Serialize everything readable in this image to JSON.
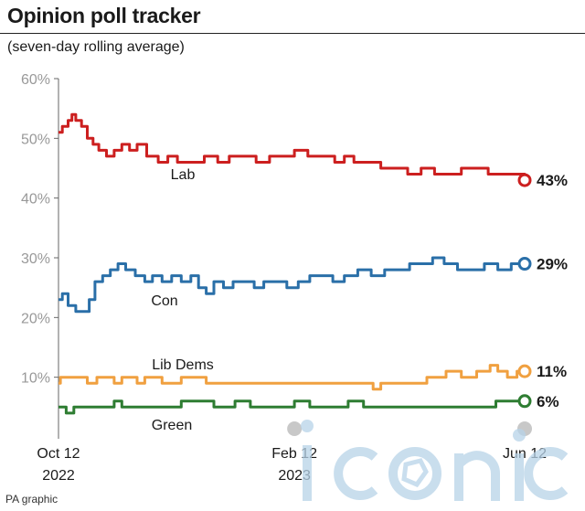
{
  "title": "Opinion poll tracker",
  "subtitle": "(seven-day rolling average)",
  "credit": "PA graphic",
  "watermark": "iconic",
  "chart_data": {
    "type": "line",
    "x_start": "2022-10-12",
    "x_end": "2023-06-12",
    "x_ticks": [
      {
        "date": "2022-10-12",
        "label": [
          "Oct 12",
          "2022"
        ]
      },
      {
        "date": "2023-02-12",
        "label": [
          "Feb 12",
          "2023"
        ]
      },
      {
        "date": "2023-06-12",
        "label": [
          "Jun 12",
          ""
        ]
      }
    ],
    "ylim": [
      0,
      60
    ],
    "y_ticks": [
      {
        "value": 60,
        "label": "60%"
      },
      {
        "value": 50,
        "label": "50%"
      },
      {
        "value": 40,
        "label": "40%"
      },
      {
        "value": 30,
        "label": "30%"
      },
      {
        "value": 20,
        "label": "20%"
      },
      {
        "value": 10,
        "label": "10%"
      }
    ],
    "grid": false,
    "series": [
      {
        "name": "Lab",
        "color": "#cc1f1f",
        "end_label": "43%",
        "points": [
          [
            "2022-10-12",
            51
          ],
          [
            "2022-10-14",
            52
          ],
          [
            "2022-10-17",
            53
          ],
          [
            "2022-10-19",
            54
          ],
          [
            "2022-10-21",
            53
          ],
          [
            "2022-10-24",
            52
          ],
          [
            "2022-10-27",
            50
          ],
          [
            "2022-10-30",
            49
          ],
          [
            "2022-11-02",
            48
          ],
          [
            "2022-11-06",
            47
          ],
          [
            "2022-11-10",
            48
          ],
          [
            "2022-11-14",
            49
          ],
          [
            "2022-11-18",
            48
          ],
          [
            "2022-11-22",
            49
          ],
          [
            "2022-11-27",
            47
          ],
          [
            "2022-12-03",
            46
          ],
          [
            "2022-12-08",
            47
          ],
          [
            "2022-12-13",
            46
          ],
          [
            "2022-12-20",
            46
          ],
          [
            "2022-12-27",
            47
          ],
          [
            "2023-01-03",
            46
          ],
          [
            "2023-01-09",
            47
          ],
          [
            "2023-01-16",
            47
          ],
          [
            "2023-01-23",
            46
          ],
          [
            "2023-01-30",
            47
          ],
          [
            "2023-02-06",
            47
          ],
          [
            "2023-02-12",
            48
          ],
          [
            "2023-02-19",
            47
          ],
          [
            "2023-02-26",
            47
          ],
          [
            "2023-03-05",
            46
          ],
          [
            "2023-03-10",
            47
          ],
          [
            "2023-03-15",
            46
          ],
          [
            "2023-03-22",
            46
          ],
          [
            "2023-03-29",
            45
          ],
          [
            "2023-04-05",
            45
          ],
          [
            "2023-04-12",
            44
          ],
          [
            "2023-04-19",
            45
          ],
          [
            "2023-04-26",
            44
          ],
          [
            "2023-05-03",
            44
          ],
          [
            "2023-05-10",
            45
          ],
          [
            "2023-05-17",
            45
          ],
          [
            "2023-05-24",
            44
          ],
          [
            "2023-05-31",
            44
          ],
          [
            "2023-06-06",
            44
          ],
          [
            "2023-06-12",
            43
          ]
        ]
      },
      {
        "name": "Con",
        "color": "#2a6fa8",
        "end_label": "29%",
        "points": [
          [
            "2022-10-12",
            23
          ],
          [
            "2022-10-14",
            24
          ],
          [
            "2022-10-17",
            22
          ],
          [
            "2022-10-21",
            21
          ],
          [
            "2022-10-25",
            21
          ],
          [
            "2022-10-28",
            23
          ],
          [
            "2022-10-31",
            26
          ],
          [
            "2022-11-04",
            27
          ],
          [
            "2022-11-08",
            28
          ],
          [
            "2022-11-12",
            29
          ],
          [
            "2022-11-16",
            28
          ],
          [
            "2022-11-21",
            27
          ],
          [
            "2022-11-26",
            26
          ],
          [
            "2022-11-30",
            27
          ],
          [
            "2022-12-05",
            26
          ],
          [
            "2022-12-10",
            27
          ],
          [
            "2022-12-15",
            26
          ],
          [
            "2022-12-20",
            27
          ],
          [
            "2022-12-24",
            25
          ],
          [
            "2022-12-28",
            24
          ],
          [
            "2023-01-01",
            26
          ],
          [
            "2023-01-06",
            25
          ],
          [
            "2023-01-11",
            26
          ],
          [
            "2023-01-17",
            26
          ],
          [
            "2023-01-22",
            25
          ],
          [
            "2023-01-27",
            26
          ],
          [
            "2023-02-02",
            26
          ],
          [
            "2023-02-08",
            25
          ],
          [
            "2023-02-14",
            26
          ],
          [
            "2023-02-20",
            27
          ],
          [
            "2023-02-26",
            27
          ],
          [
            "2023-03-04",
            26
          ],
          [
            "2023-03-10",
            27
          ],
          [
            "2023-03-17",
            28
          ],
          [
            "2023-03-24",
            27
          ],
          [
            "2023-03-31",
            28
          ],
          [
            "2023-04-07",
            28
          ],
          [
            "2023-04-13",
            29
          ],
          [
            "2023-04-19",
            29
          ],
          [
            "2023-04-25",
            30
          ],
          [
            "2023-05-01",
            29
          ],
          [
            "2023-05-08",
            28
          ],
          [
            "2023-05-15",
            28
          ],
          [
            "2023-05-22",
            29
          ],
          [
            "2023-05-29",
            28
          ],
          [
            "2023-06-05",
            29
          ],
          [
            "2023-06-12",
            29
          ]
        ]
      },
      {
        "name": "Lib Dems",
        "color": "#f0a040",
        "end_label": "11%",
        "points": [
          [
            "2022-10-12",
            9
          ],
          [
            "2022-10-13",
            10
          ],
          [
            "2022-10-25",
            10
          ],
          [
            "2022-10-27",
            9
          ],
          [
            "2022-11-01",
            10
          ],
          [
            "2022-11-10",
            9
          ],
          [
            "2022-11-14",
            10
          ],
          [
            "2022-11-22",
            9
          ],
          [
            "2022-11-26",
            10
          ],
          [
            "2022-12-05",
            9
          ],
          [
            "2022-12-15",
            10
          ],
          [
            "2022-12-28",
            9
          ],
          [
            "2023-01-05",
            9
          ],
          [
            "2023-01-15",
            9
          ],
          [
            "2023-01-25",
            9
          ],
          [
            "2023-02-05",
            9
          ],
          [
            "2023-02-15",
            9
          ],
          [
            "2023-03-01",
            9
          ],
          [
            "2023-03-15",
            9
          ],
          [
            "2023-03-25",
            8
          ],
          [
            "2023-03-29",
            9
          ],
          [
            "2023-04-10",
            9
          ],
          [
            "2023-04-22",
            10
          ],
          [
            "2023-05-02",
            11
          ],
          [
            "2023-05-10",
            10
          ],
          [
            "2023-05-18",
            11
          ],
          [
            "2023-05-25",
            12
          ],
          [
            "2023-05-29",
            11
          ],
          [
            "2023-06-03",
            10
          ],
          [
            "2023-06-08",
            11
          ],
          [
            "2023-06-12",
            11
          ]
        ]
      },
      {
        "name": "Green",
        "color": "#2e7d32",
        "end_label": "6%",
        "points": [
          [
            "2022-10-12",
            5
          ],
          [
            "2022-10-16",
            4
          ],
          [
            "2022-10-20",
            5
          ],
          [
            "2022-10-26",
            5
          ],
          [
            "2022-11-01",
            5
          ],
          [
            "2022-11-10",
            6
          ],
          [
            "2022-11-14",
            5
          ],
          [
            "2022-11-24",
            5
          ],
          [
            "2022-12-05",
            5
          ],
          [
            "2022-12-15",
            6
          ],
          [
            "2022-12-24",
            6
          ],
          [
            "2023-01-01",
            5
          ],
          [
            "2023-01-12",
            6
          ],
          [
            "2023-01-20",
            5
          ],
          [
            "2023-02-01",
            5
          ],
          [
            "2023-02-12",
            6
          ],
          [
            "2023-02-20",
            5
          ],
          [
            "2023-03-01",
            5
          ],
          [
            "2023-03-12",
            6
          ],
          [
            "2023-03-20",
            5
          ],
          [
            "2023-04-01",
            5
          ],
          [
            "2023-04-12",
            5
          ],
          [
            "2023-04-25",
            5
          ],
          [
            "2023-05-05",
            5
          ],
          [
            "2023-05-15",
            5
          ],
          [
            "2023-05-28",
            6
          ],
          [
            "2023-06-05",
            6
          ],
          [
            "2023-06-12",
            6
          ]
        ]
      }
    ]
  }
}
